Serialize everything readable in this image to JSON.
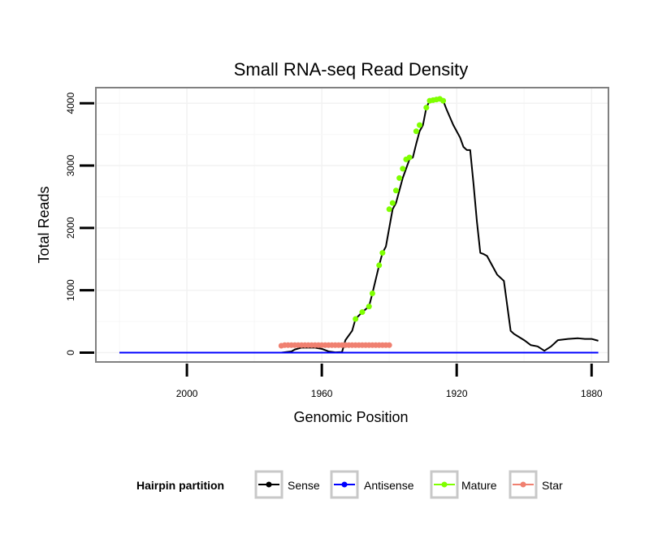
{
  "chart_data": {
    "type": "line",
    "title": "Small RNA-seq Read Density",
    "xlabel": "Genomic Position",
    "ylabel": "Total Reads",
    "xlim": [
      2027,
      1875
    ],
    "ylim": [
      -150,
      4250
    ],
    "x_reversed": true,
    "x_ticks": [
      2000,
      1960,
      1920,
      1880
    ],
    "x_tick_labels": [
      "2000",
      "1960",
      "1920",
      "1880"
    ],
    "y_ticks": [
      0,
      1000,
      2000,
      3000,
      4000
    ],
    "y_tick_labels": [
      "0",
      "1000",
      "2000",
      "3000",
      "4000"
    ],
    "grid": true,
    "legend": {
      "title": "Hairpin partition",
      "position": "bottom",
      "entries": [
        {
          "name": "Sense",
          "color": "#000000"
        },
        {
          "name": "Antisense",
          "color": "#0000ff"
        },
        {
          "name": "Mature",
          "color": "#7fff00"
        },
        {
          "name": "Star",
          "color": "#f08070"
        }
      ]
    },
    "series": [
      {
        "name": "Sense",
        "color": "#000000",
        "points": [
          [
            2020,
            0
          ],
          [
            2000,
            0
          ],
          [
            1980,
            0
          ],
          [
            1972,
            0
          ],
          [
            1969,
            20
          ],
          [
            1968,
            50
          ],
          [
            1966,
            80
          ],
          [
            1962,
            80
          ],
          [
            1960,
            60
          ],
          [
            1958,
            20
          ],
          [
            1956,
            5
          ],
          [
            1954,
            10
          ],
          [
            1953,
            200
          ],
          [
            1951,
            350
          ],
          [
            1950,
            540
          ],
          [
            1948,
            650
          ],
          [
            1946,
            740
          ],
          [
            1945,
            950
          ],
          [
            1943,
            1400
          ],
          [
            1942,
            1600
          ],
          [
            1941,
            1700
          ],
          [
            1940,
            2000
          ],
          [
            1939,
            2300
          ],
          [
            1938,
            2400
          ],
          [
            1937,
            2600
          ],
          [
            1936,
            2800
          ],
          [
            1935,
            2950
          ],
          [
            1934,
            3100
          ],
          [
            1933,
            3130
          ],
          [
            1932,
            3350
          ],
          [
            1931,
            3550
          ],
          [
            1930,
            3650
          ],
          [
            1929,
            3930
          ],
          [
            1928,
            4040
          ],
          [
            1927,
            4050
          ],
          [
            1926,
            4060
          ],
          [
            1925,
            4070
          ],
          [
            1924,
            4040
          ],
          [
            1923,
            3900
          ],
          [
            1921,
            3650
          ],
          [
            1920,
            3550
          ],
          [
            1919,
            3450
          ],
          [
            1918,
            3300
          ],
          [
            1917,
            3250
          ],
          [
            1916,
            3250
          ],
          [
            1915,
            2700
          ],
          [
            1914,
            2100
          ],
          [
            1913,
            1600
          ],
          [
            1912,
            1580
          ],
          [
            1911,
            1550
          ],
          [
            1910,
            1450
          ],
          [
            1909,
            1350
          ],
          [
            1908,
            1250
          ],
          [
            1906,
            1150
          ],
          [
            1905,
            750
          ],
          [
            1904,
            350
          ],
          [
            1903,
            300
          ],
          [
            1900,
            200
          ],
          [
            1898,
            120
          ],
          [
            1896,
            100
          ],
          [
            1894,
            30
          ],
          [
            1892,
            100
          ],
          [
            1890,
            200
          ],
          [
            1887,
            220
          ],
          [
            1884,
            230
          ],
          [
            1882,
            220
          ],
          [
            1880,
            220
          ],
          [
            1878,
            190
          ]
        ]
      },
      {
        "name": "Antisense",
        "color": "#0000ff",
        "points": [
          [
            2020,
            0
          ],
          [
            1878,
            0
          ]
        ]
      },
      {
        "name": "Mature",
        "color": "#7fff00",
        "points": [
          [
            1950,
            540
          ],
          [
            1948,
            650
          ],
          [
            1946,
            740
          ],
          [
            1945,
            950
          ],
          [
            1943,
            1400
          ],
          [
            1942,
            1600
          ],
          [
            1940,
            2300
          ],
          [
            1939,
            2400
          ],
          [
            1938,
            2600
          ],
          [
            1937,
            2800
          ],
          [
            1936,
            2950
          ],
          [
            1935,
            3100
          ],
          [
            1934,
            3130
          ],
          [
            1932,
            3550
          ],
          [
            1931,
            3650
          ],
          [
            1929,
            3930
          ],
          [
            1928,
            4040
          ],
          [
            1927,
            4050
          ],
          [
            1926,
            4060
          ],
          [
            1925,
            4070
          ],
          [
            1924,
            4040
          ]
        ]
      },
      {
        "name": "Star",
        "color": "#f08070",
        "points": [
          [
            1972,
            110
          ],
          [
            1971,
            120
          ],
          [
            1970,
            120
          ],
          [
            1969,
            120
          ],
          [
            1968,
            120
          ],
          [
            1967,
            120
          ],
          [
            1966,
            120
          ],
          [
            1965,
            120
          ],
          [
            1964,
            120
          ],
          [
            1963,
            120
          ],
          [
            1962,
            120
          ],
          [
            1961,
            120
          ],
          [
            1960,
            120
          ],
          [
            1959,
            120
          ],
          [
            1958,
            120
          ],
          [
            1957,
            120
          ],
          [
            1956,
            120
          ],
          [
            1955,
            120
          ],
          [
            1954,
            120
          ],
          [
            1953,
            120
          ],
          [
            1952,
            120
          ],
          [
            1951,
            120
          ],
          [
            1950,
            120
          ],
          [
            1949,
            120
          ],
          [
            1948,
            120
          ],
          [
            1947,
            120
          ],
          [
            1946,
            120
          ],
          [
            1945,
            120
          ],
          [
            1944,
            120
          ],
          [
            1943,
            120
          ],
          [
            1942,
            120
          ],
          [
            1941,
            120
          ],
          [
            1940,
            120
          ]
        ]
      }
    ]
  }
}
